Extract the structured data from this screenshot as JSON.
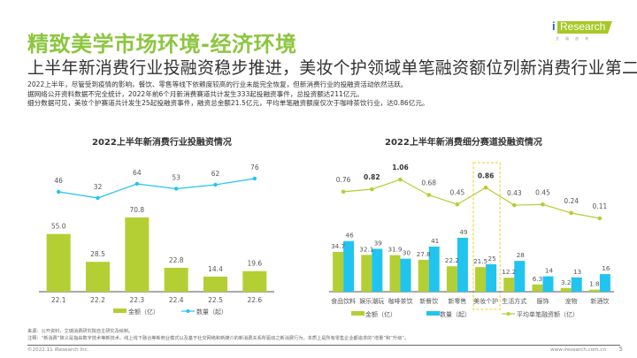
{
  "header": {
    "title": "精致美学市场环境-经济环境",
    "subtitle": "上半年新消费行业投融资稳步推进，美妆个护领域单笔融资额位列新消费行业第二",
    "desc": [
      "2022上半年，尽管受到疫情的影响，餐饮、零售等线下依赖度较高的行业未能完全恢复，但新消费行业的投融资活动依然活跃。",
      "据网络公开资料数据不完全统计，2022年前6个月新消费赛道共计发生333起投融资事件，总投资额达211亿元。",
      "细分数据可见，美妆个护赛道共计发生25起投融资事件，融资总金额21.5亿元，平均单笔融资额度仅次于咖啡茶饮行业，达0.86亿元。"
    ]
  },
  "logo": {
    "i": "i",
    "text": "Research",
    "sub": "艾瑞咨询"
  },
  "colors": {
    "green": "#b3cf34",
    "blue": "#21c4ef",
    "line_green": "#b3cf34",
    "highlight": "#f7d555",
    "title_green": "#8cc63f"
  },
  "chart_data": [
    {
      "type": "bar",
      "title": "2022上半年新消费行业投融资情况",
      "categories": [
        "22.1",
        "22.2",
        "22.3",
        "22.4",
        "22.5",
        "22.6"
      ],
      "series": [
        {
          "name": "金额（亿）",
          "kind": "bar",
          "values": [
            55.0,
            28.5,
            70.8,
            22.8,
            14.4,
            19.6
          ],
          "labels": [
            "55.0",
            "28.5",
            "70.8",
            "22.8",
            "14.4",
            "19.6"
          ]
        },
        {
          "name": "数量（起）",
          "kind": "line",
          "values": [
            46,
            32,
            64,
            53,
            62,
            76
          ],
          "labels": [
            "46",
            "32",
            "64",
            "53",
            "62",
            "76"
          ]
        }
      ],
      "legend": "bottom"
    },
    {
      "type": "bar",
      "title": "2022上半年新消费细分赛道投融资情况",
      "categories": [
        "食品饮料",
        "娱乐潮玩",
        "咖啡茶饮",
        "新餐饮",
        "新零售",
        "美妆个护",
        "生活方式",
        "服饰",
        "宠物",
        "新酒饮"
      ],
      "series": [
        {
          "name": "金额（亿）",
          "kind": "bar",
          "values": [
            34.7,
            32.1,
            31.9,
            27.8,
            22.2,
            21.5,
            12.2,
            6.3,
            3.2,
            1.8
          ],
          "labels": [
            "34.7",
            "32.1",
            "31.9",
            "27.8",
            "22.2",
            "21.5",
            "12.2",
            "6.3",
            "3.2",
            "1.8"
          ]
        },
        {
          "name": "数量（起）",
          "kind": "bar",
          "values": [
            46,
            39,
            30,
            41,
            49,
            25,
            28,
            14,
            13,
            16
          ],
          "labels": [
            "46",
            "39",
            "30",
            "41",
            "49",
            "25",
            "28",
            "14",
            "13",
            "16"
          ]
        },
        {
          "name": "平均单笔融资额（亿）",
          "kind": "line",
          "values": [
            0.76,
            0.82,
            1.06,
            0.68,
            0.45,
            0.86,
            0.43,
            0.45,
            0.24,
            0.11
          ],
          "labels": [
            "0.76",
            "0.82",
            "1.06",
            "0.68",
            "0.45",
            "0.86",
            "0.43",
            "0.45",
            "0.24",
            "0.11"
          ],
          "bold": [
            false,
            true,
            true,
            false,
            false,
            true,
            false,
            false,
            false,
            false
          ]
        }
      ],
      "highlight_category": "美妆个护",
      "legend": "bottom"
    }
  ],
  "footer": {
    "source": "来源：公开资料，艾瑞消费研究院自主研究及绘制。",
    "note": "注释：“新消费”狭义是指由数字技术等新技术、线上线下融合等新商业模式以及基于社交网络和新媒介的新消费关系所驱动之新消费行为。本质上是所有零售企业都追求的“增量”和“升级”。",
    "copyright": "©2022.11 iResearch Inc.",
    "website": "www.iresearch.com.cn",
    "page": "5"
  }
}
